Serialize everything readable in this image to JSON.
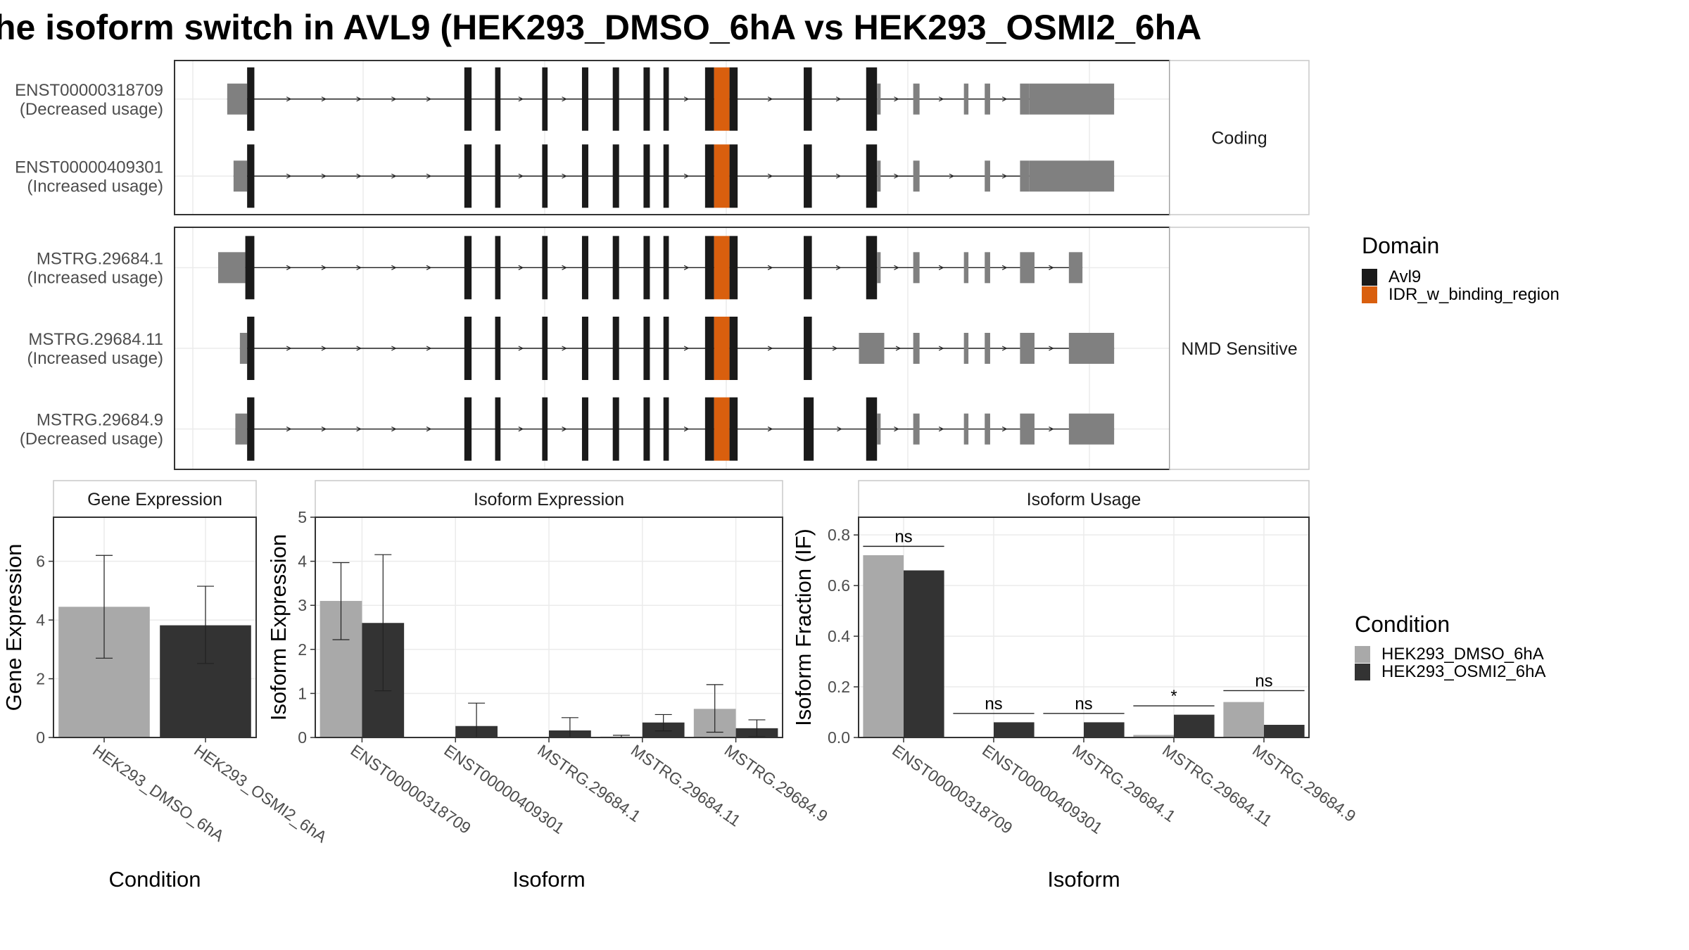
{
  "title": "he isoform switch in AVL9 (HEK293_DMSO_6hA vs HEK293_OSMI2_6hA",
  "colors": {
    "avl9": "#1a1a1a",
    "idr": "#d95f0e",
    "utr": "#808080",
    "dmso": "#a9a9a9",
    "osmi2": "#333333",
    "panel_border": "#333333",
    "strip_border": "#c8c8c8",
    "grid": "#ebebeb"
  },
  "structure": {
    "genomic_range": [
      0,
      1000
    ],
    "groups": [
      {
        "label": "Coding",
        "transcripts": [
          {
            "id": "ENST00000318709",
            "note": "(Decreased usage)",
            "exons": [
              [
                10,
                32,
                "utr"
              ],
              [
                32,
                40,
                "avl9"
              ],
              [
                272,
                280,
                "avl9"
              ],
              [
                306,
                312,
                "avl9"
              ],
              [
                358,
                364,
                "avl9"
              ],
              [
                402,
                409,
                "avl9"
              ],
              [
                436,
                443,
                "avl9"
              ],
              [
                470,
                477,
                "avl9"
              ],
              [
                492,
                498,
                "avl9"
              ],
              [
                538,
                548,
                "avl9"
              ],
              [
                548,
                565,
                "idr"
              ],
              [
                565,
                574,
                "avl9"
              ],
              [
                647,
                656,
                "avl9"
              ],
              [
                716,
                728,
                "avl9"
              ],
              [
                728,
                732,
                "utr"
              ],
              [
                768,
                775,
                "utr"
              ],
              [
                824,
                829,
                "utr"
              ],
              [
                847,
                853,
                "utr"
              ],
              [
                886,
                896,
                "utr"
              ],
              [
                896,
                990,
                "utr"
              ]
            ]
          },
          {
            "id": "ENST00000409301",
            "note": "(Increased usage)",
            "exons": [
              [
                17,
                32,
                "utr"
              ],
              [
                32,
                40,
                "avl9"
              ],
              [
                272,
                280,
                "avl9"
              ],
              [
                306,
                312,
                "avl9"
              ],
              [
                358,
                364,
                "avl9"
              ],
              [
                402,
                409,
                "avl9"
              ],
              [
                436,
                443,
                "avl9"
              ],
              [
                470,
                477,
                "avl9"
              ],
              [
                492,
                498,
                "avl9"
              ],
              [
                538,
                548,
                "avl9"
              ],
              [
                548,
                565,
                "idr"
              ],
              [
                565,
                574,
                "avl9"
              ],
              [
                647,
                656,
                "avl9"
              ],
              [
                716,
                728,
                "avl9"
              ],
              [
                728,
                732,
                "utr"
              ],
              [
                768,
                775,
                "utr"
              ],
              [
                847,
                853,
                "utr"
              ],
              [
                886,
                896,
                "utr"
              ],
              [
                896,
                990,
                "utr"
              ]
            ]
          }
        ]
      },
      {
        "label": "NMD Sensitive",
        "transcripts": [
          {
            "id": "MSTRG.29684.1",
            "note": "(Increased usage)",
            "exons": [
              [
                0,
                30,
                "utr"
              ],
              [
                30,
                40,
                "avl9"
              ],
              [
                272,
                280,
                "avl9"
              ],
              [
                306,
                312,
                "avl9"
              ],
              [
                358,
                364,
                "avl9"
              ],
              [
                402,
                409,
                "avl9"
              ],
              [
                436,
                443,
                "avl9"
              ],
              [
                470,
                477,
                "avl9"
              ],
              [
                492,
                498,
                "avl9"
              ],
              [
                538,
                548,
                "avl9"
              ],
              [
                548,
                565,
                "idr"
              ],
              [
                565,
                574,
                "avl9"
              ],
              [
                647,
                656,
                "avl9"
              ],
              [
                716,
                728,
                "avl9"
              ],
              [
                728,
                732,
                "utr"
              ],
              [
                768,
                775,
                "utr"
              ],
              [
                824,
                829,
                "utr"
              ],
              [
                847,
                853,
                "utr"
              ],
              [
                886,
                902,
                "utr"
              ],
              [
                940,
                955,
                "utr"
              ]
            ]
          },
          {
            "id": "MSTRG.29684.11",
            "note": "(Increased usage)",
            "exons": [
              [
                24,
                32,
                "utr"
              ],
              [
                32,
                40,
                "avl9"
              ],
              [
                272,
                280,
                "avl9"
              ],
              [
                306,
                312,
                "avl9"
              ],
              [
                358,
                364,
                "avl9"
              ],
              [
                402,
                409,
                "avl9"
              ],
              [
                436,
                443,
                "avl9"
              ],
              [
                470,
                477,
                "avl9"
              ],
              [
                492,
                498,
                "avl9"
              ],
              [
                538,
                548,
                "avl9"
              ],
              [
                548,
                565,
                "idr"
              ],
              [
                565,
                574,
                "avl9"
              ],
              [
                647,
                656,
                "avl9"
              ],
              [
                708,
                736,
                "utr"
              ],
              [
                768,
                775,
                "utr"
              ],
              [
                824,
                829,
                "utr"
              ],
              [
                847,
                853,
                "utr"
              ],
              [
                886,
                902,
                "utr"
              ],
              [
                940,
                990,
                "utr"
              ]
            ]
          },
          {
            "id": "MSTRG.29684.9",
            "note": "(Decreased usage)",
            "exons": [
              [
                19,
                32,
                "utr"
              ],
              [
                32,
                40,
                "avl9"
              ],
              [
                272,
                280,
                "avl9"
              ],
              [
                306,
                312,
                "avl9"
              ],
              [
                358,
                364,
                "avl9"
              ],
              [
                402,
                409,
                "avl9"
              ],
              [
                436,
                443,
                "avl9"
              ],
              [
                470,
                477,
                "avl9"
              ],
              [
                492,
                498,
                "avl9"
              ],
              [
                538,
                548,
                "avl9"
              ],
              [
                548,
                565,
                "idr"
              ],
              [
                565,
                574,
                "avl9"
              ],
              [
                647,
                658,
                "avl9"
              ],
              [
                716,
                728,
                "avl9"
              ],
              [
                728,
                732,
                "utr"
              ],
              [
                768,
                775,
                "utr"
              ],
              [
                824,
                829,
                "utr"
              ],
              [
                847,
                853,
                "utr"
              ],
              [
                886,
                902,
                "utr"
              ],
              [
                940,
                990,
                "utr"
              ]
            ]
          }
        ]
      }
    ]
  },
  "legends": {
    "domain": {
      "title": "Domain",
      "items": [
        "Avl9",
        "IDR_w_binding_region"
      ]
    },
    "condition": {
      "title": "Condition",
      "items": [
        "HEK293_DMSO_6hA",
        "HEK293_OSMI2_6hA"
      ]
    }
  },
  "chart_data": [
    {
      "type": "bar",
      "title": "Gene Expression",
      "xlabel": "Condition",
      "ylabel": "Gene Expression",
      "ylim": [
        0,
        7.5
      ],
      "yticks": [
        0,
        2,
        4,
        6
      ],
      "categories": [
        "HEK293_DMSO_6hA",
        "HEK293_OSMI2_6hA"
      ],
      "values": [
        4.45,
        3.82
      ],
      "errors": [
        [
          2.7,
          6.2
        ],
        [
          2.52,
          5.15
        ]
      ]
    },
    {
      "type": "bar",
      "title": "Isoform Expression",
      "xlabel": "Isoform",
      "ylabel": "Isoform Expression",
      "ylim": [
        0,
        5
      ],
      "yticks": [
        0,
        1,
        2,
        3,
        4,
        5
      ],
      "categories": [
        "ENST00000318709",
        "ENST00000409301",
        "MSTRG.29684.1",
        "MSTRG.29684.11",
        "MSTRG.29684.9"
      ],
      "series": [
        {
          "name": "HEK293_DMSO_6hA",
          "values": [
            3.1,
            0.0,
            0.0,
            0.02,
            0.65
          ],
          "errors": [
            [
              2.22,
              3.97
            ],
            [
              0.0,
              0.0
            ],
            [
              0.0,
              0.0
            ],
            [
              0.0,
              0.05
            ],
            [
              0.12,
              1.2
            ]
          ]
        },
        {
          "name": "HEK293_OSMI2_6hA",
          "values": [
            2.6,
            0.26,
            0.16,
            0.34,
            0.21
          ],
          "errors": [
            [
              1.06,
              4.15
            ],
            [
              0.0,
              0.78
            ],
            [
              0.0,
              0.45
            ],
            [
              0.15,
              0.52
            ],
            [
              0.02,
              0.4
            ]
          ]
        }
      ]
    },
    {
      "type": "bar",
      "title": "Isoform Usage",
      "xlabel": "Isoform",
      "ylabel": "Isoform Fraction (IF)",
      "ylim": [
        0,
        0.87
      ],
      "yticks": [
        "0.0",
        "0.2",
        "0.4",
        "0.6",
        "0.8"
      ],
      "categories": [
        "ENST00000318709",
        "ENST00000409301",
        "MSTRG.29684.1",
        "MSTRG.29684.11",
        "MSTRG.29684.9"
      ],
      "series": [
        {
          "name": "HEK293_DMSO_6hA",
          "values": [
            0.72,
            0.0,
            0.0,
            0.01,
            0.14
          ]
        },
        {
          "name": "HEK293_OSMI2_6hA",
          "values": [
            0.66,
            0.06,
            0.06,
            0.09,
            0.05
          ]
        }
      ],
      "significance": [
        "ns",
        "ns",
        "ns",
        "*",
        "ns"
      ],
      "sig_y": [
        0.755,
        0.095,
        0.095,
        0.125,
        0.185
      ]
    }
  ]
}
